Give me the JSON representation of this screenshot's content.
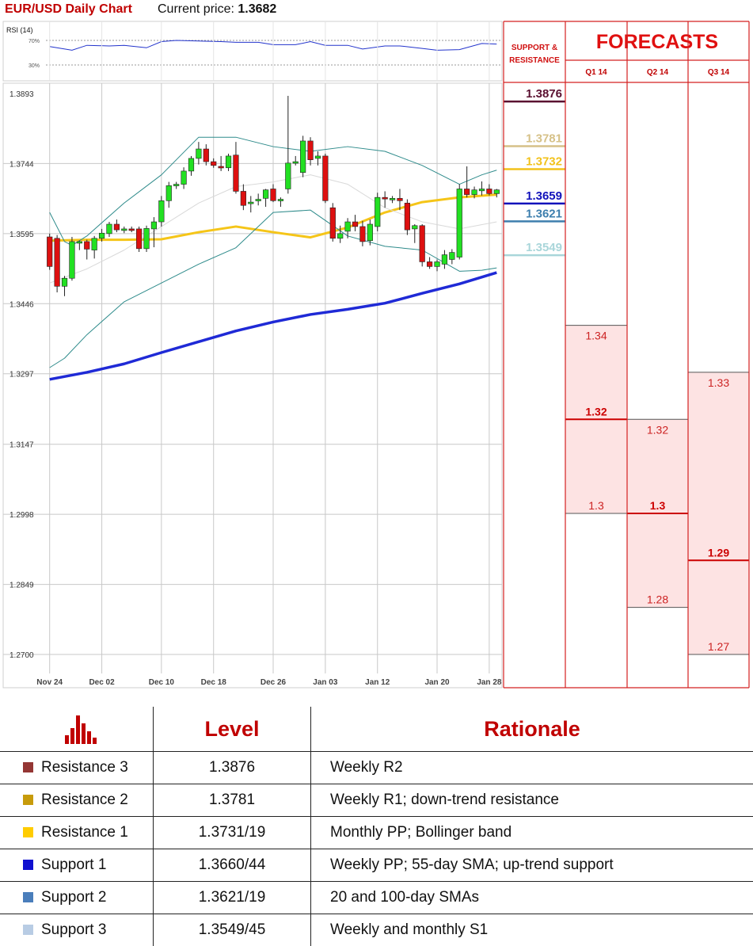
{
  "header": {
    "title": "EUR/USD Daily Chart",
    "price_label": "Current price:",
    "price_value": "1.3682"
  },
  "rsi_panel": {
    "label": "RSI (14)",
    "level_high": "70%",
    "level_low": "30%"
  },
  "chart_data": [
    {
      "type": "candlestick",
      "title": "EUR/USD Daily Chart",
      "ylim": [
        1.27,
        1.3893
      ],
      "y_ticks": [
        "1.3893",
        "1.3744",
        "1.3595",
        "1.3446",
        "1.3297",
        "1.3147",
        "1.2998",
        "1.2849",
        "1.2700"
      ],
      "x_ticks": [
        "Nov 24",
        "Dec 02",
        "Dec 10",
        "Dec 18",
        "Dec 26",
        "Jan 03",
        "Jan 12",
        "Jan 20",
        "Jan 28"
      ],
      "candles": [
        {
          "o": 1.3588,
          "h": 1.3595,
          "l": 1.3518,
          "c": 1.3525
        },
        {
          "o": 1.3585,
          "h": 1.3592,
          "l": 1.347,
          "c": 1.3483
        },
        {
          "o": 1.3483,
          "h": 1.3505,
          "l": 1.3462,
          "c": 1.35
        },
        {
          "o": 1.35,
          "h": 1.3588,
          "l": 1.3495,
          "c": 1.3578
        },
        {
          "o": 1.3575,
          "h": 1.358,
          "l": 1.356,
          "c": 1.3578
        },
        {
          "o": 1.3578,
          "h": 1.3582,
          "l": 1.354,
          "c": 1.3562
        },
        {
          "o": 1.356,
          "h": 1.359,
          "l": 1.3542,
          "c": 1.3585
        },
        {
          "o": 1.3585,
          "h": 1.3605,
          "l": 1.3578,
          "c": 1.3596
        },
        {
          "o": 1.3595,
          "h": 1.362,
          "l": 1.3588,
          "c": 1.3615
        },
        {
          "o": 1.3615,
          "h": 1.3625,
          "l": 1.3598,
          "c": 1.3603
        },
        {
          "o": 1.3603,
          "h": 1.361,
          "l": 1.3596,
          "c": 1.3605
        },
        {
          "o": 1.3605,
          "h": 1.361,
          "l": 1.3598,
          "c": 1.3603
        },
        {
          "o": 1.3605,
          "h": 1.361,
          "l": 1.3556,
          "c": 1.3563
        },
        {
          "o": 1.3563,
          "h": 1.3612,
          "l": 1.3556,
          "c": 1.3606
        },
        {
          "o": 1.3605,
          "h": 1.363,
          "l": 1.3566,
          "c": 1.362
        },
        {
          "o": 1.362,
          "h": 1.3675,
          "l": 1.361,
          "c": 1.3665
        },
        {
          "o": 1.3665,
          "h": 1.3705,
          "l": 1.365,
          "c": 1.3697
        },
        {
          "o": 1.3698,
          "h": 1.3705,
          "l": 1.369,
          "c": 1.37
        },
        {
          "o": 1.37,
          "h": 1.3736,
          "l": 1.369,
          "c": 1.3728
        },
        {
          "o": 1.3728,
          "h": 1.376,
          "l": 1.3718,
          "c": 1.3755
        },
        {
          "o": 1.3755,
          "h": 1.379,
          "l": 1.3742,
          "c": 1.3775
        },
        {
          "o": 1.3775,
          "h": 1.3785,
          "l": 1.374,
          "c": 1.3748
        },
        {
          "o": 1.3748,
          "h": 1.3755,
          "l": 1.3735,
          "c": 1.374
        },
        {
          "o": 1.3738,
          "h": 1.376,
          "l": 1.3728,
          "c": 1.3735
        },
        {
          "o": 1.3735,
          "h": 1.3765,
          "l": 1.3728,
          "c": 1.376
        },
        {
          "o": 1.3762,
          "h": 1.379,
          "l": 1.368,
          "c": 1.3685
        },
        {
          "o": 1.3685,
          "h": 1.37,
          "l": 1.3645,
          "c": 1.3655
        },
        {
          "o": 1.366,
          "h": 1.3675,
          "l": 1.364,
          "c": 1.3662
        },
        {
          "o": 1.3665,
          "h": 1.368,
          "l": 1.3655,
          "c": 1.3668
        },
        {
          "o": 1.367,
          "h": 1.369,
          "l": 1.3652,
          "c": 1.3688
        },
        {
          "o": 1.369,
          "h": 1.37,
          "l": 1.3662,
          "c": 1.3665
        },
        {
          "o": 1.3665,
          "h": 1.3672,
          "l": 1.3652,
          "c": 1.3668
        },
        {
          "o": 1.369,
          "h": 1.3888,
          "l": 1.368,
          "c": 1.3745
        },
        {
          "o": 1.3745,
          "h": 1.376,
          "l": 1.374,
          "c": 1.3748
        },
        {
          "o": 1.3725,
          "h": 1.3803,
          "l": 1.3715,
          "c": 1.3792
        },
        {
          "o": 1.3792,
          "h": 1.38,
          "l": 1.374,
          "c": 1.3752
        },
        {
          "o": 1.3755,
          "h": 1.377,
          "l": 1.374,
          "c": 1.376
        },
        {
          "o": 1.376,
          "h": 1.3765,
          "l": 1.366,
          "c": 1.3665
        },
        {
          "o": 1.365,
          "h": 1.366,
          "l": 1.3578,
          "c": 1.3585
        },
        {
          "o": 1.3585,
          "h": 1.3612,
          "l": 1.3575,
          "c": 1.3595
        },
        {
          "o": 1.36,
          "h": 1.3628,
          "l": 1.3585,
          "c": 1.362
        },
        {
          "o": 1.362,
          "h": 1.3635,
          "l": 1.36,
          "c": 1.361
        },
        {
          "o": 1.361,
          "h": 1.3622,
          "l": 1.3568,
          "c": 1.3578
        },
        {
          "o": 1.358,
          "h": 1.3625,
          "l": 1.357,
          "c": 1.3615
        },
        {
          "o": 1.361,
          "h": 1.3682,
          "l": 1.36,
          "c": 1.3672
        },
        {
          "o": 1.3672,
          "h": 1.3685,
          "l": 1.365,
          "c": 1.367
        },
        {
          "o": 1.3668,
          "h": 1.3675,
          "l": 1.366,
          "c": 1.367
        },
        {
          "o": 1.367,
          "h": 1.369,
          "l": 1.3645,
          "c": 1.3665
        },
        {
          "o": 1.366,
          "h": 1.3668,
          "l": 1.3592,
          "c": 1.3603
        },
        {
          "o": 1.3605,
          "h": 1.3615,
          "l": 1.3575,
          "c": 1.3612
        },
        {
          "o": 1.3612,
          "h": 1.3615,
          "l": 1.3525,
          "c": 1.3535
        },
        {
          "o": 1.3535,
          "h": 1.3545,
          "l": 1.352,
          "c": 1.3525
        },
        {
          "o": 1.3525,
          "h": 1.354,
          "l": 1.3515,
          "c": 1.3535
        },
        {
          "o": 1.353,
          "h": 1.356,
          "l": 1.352,
          "c": 1.355
        },
        {
          "o": 1.354,
          "h": 1.3562,
          "l": 1.353,
          "c": 1.3555
        },
        {
          "o": 1.3545,
          "h": 1.37,
          "l": 1.354,
          "c": 1.369
        },
        {
          "o": 1.369,
          "h": 1.3738,
          "l": 1.3672,
          "c": 1.3678
        },
        {
          "o": 1.3678,
          "h": 1.3695,
          "l": 1.367,
          "c": 1.3688
        },
        {
          "o": 1.3686,
          "h": 1.3706,
          "l": 1.3676,
          "c": 1.369
        },
        {
          "o": 1.369,
          "h": 1.37,
          "l": 1.3676,
          "c": 1.368
        },
        {
          "o": 1.368,
          "h": 1.369,
          "l": 1.3672,
          "c": 1.3688
        }
      ],
      "series": [
        {
          "type": "line",
          "color": "#f5c518",
          "x": [
            0,
            5,
            10,
            15,
            20,
            25,
            30,
            35,
            40,
            45,
            50,
            55,
            60
          ],
          "values": [
            1.358,
            1.3582,
            1.3582,
            1.3583,
            1.3598,
            1.361,
            1.3598,
            1.3587,
            1.3608,
            1.364,
            1.3662,
            1.3672,
            1.3678
          ]
        },
        {
          "type": "line",
          "color": "#1f2ad6",
          "x": [
            0,
            5,
            10,
            15,
            20,
            25,
            30,
            35,
            40,
            45,
            50,
            55,
            60
          ],
          "values": [
            1.3285,
            1.33,
            1.3318,
            1.3342,
            1.3365,
            1.3388,
            1.3407,
            1.3423,
            1.3434,
            1.3447,
            1.3468,
            1.3488,
            1.3512
          ]
        },
        {
          "type": "line",
          "color": "#2e8b8b",
          "x": [
            0,
            2,
            3,
            5,
            10,
            15,
            20,
            25,
            30,
            35,
            40,
            45,
            50,
            55,
            58,
            60
          ],
          "values": [
            1.364,
            1.3578,
            1.357,
            1.359,
            1.366,
            1.372,
            1.38,
            1.38,
            1.378,
            1.377,
            1.378,
            1.377,
            1.374,
            1.37,
            1.372,
            1.373
          ]
        },
        {
          "type": "line",
          "color": "#2e8b8b",
          "x": [
            0,
            2,
            5,
            10,
            15,
            20,
            25,
            30,
            35,
            40,
            45,
            50,
            55,
            58,
            60
          ],
          "values": [
            1.331,
            1.333,
            1.338,
            1.345,
            1.349,
            1.353,
            1.3565,
            1.364,
            1.3645,
            1.359,
            1.3568,
            1.356,
            1.3515,
            1.3517,
            1.3522
          ]
        },
        {
          "type": "line",
          "color": "#d9d9d9",
          "x": [
            0,
            5,
            10,
            15,
            20,
            25,
            30,
            35,
            40,
            45,
            50,
            55,
            60
          ],
          "values": [
            1.349,
            1.352,
            1.356,
            1.361,
            1.366,
            1.3695,
            1.3705,
            1.372,
            1.37,
            1.365,
            1.362,
            1.3605,
            1.362
          ]
        }
      ],
      "support_resistance": [
        {
          "value": "1.3876",
          "level": 1.3876,
          "color": "#5a1030"
        },
        {
          "value": "1.3781",
          "level": 1.3781,
          "color": "#d6c188"
        },
        {
          "value": "1.3732",
          "level": 1.3732,
          "color": "#f2c21b"
        },
        {
          "value": "1.3659",
          "level": 1.3659,
          "color": "#1212bb"
        },
        {
          "value": "1.3621",
          "level": 1.3621,
          "color": "#3e7fae"
        },
        {
          "value": "1.3549",
          "level": 1.3549,
          "color": "#a9d6da"
        }
      ]
    },
    {
      "type": "line",
      "title": "RSI (14)",
      "ylim": [
        0,
        100
      ],
      "x": [
        0,
        3,
        5,
        8,
        10,
        13,
        15,
        17,
        20,
        23,
        25,
        28,
        30,
        33,
        35,
        37,
        40,
        42,
        45,
        47,
        50,
        52,
        55,
        58,
        60
      ],
      "values": [
        60,
        54,
        62,
        61,
        62,
        58,
        68,
        70,
        69,
        68,
        67,
        67,
        63,
        63,
        68,
        62,
        62,
        56,
        61,
        61,
        57,
        54,
        55,
        65,
        64
      ]
    }
  ],
  "forecasts": {
    "title": "FORECASTS",
    "sr_header": "SUPPORT & RESISTANCE",
    "columns": [
      {
        "label": "Q1 14",
        "high": "1.34",
        "mid": "1.32",
        "low": "1.3",
        "high_v": 1.34,
        "mid_v": 1.32,
        "low_v": 1.3
      },
      {
        "label": "Q2 14",
        "high": "1.32",
        "mid": "1.3",
        "low": "1.28",
        "high_v": 1.32,
        "mid_v": 1.3,
        "low_v": 1.28
      },
      {
        "label": "Q3 14",
        "high": "1.33",
        "mid": "1.29",
        "low": "1.27",
        "high_v": 1.33,
        "mid_v": 1.29,
        "low_v": 1.27
      }
    ]
  },
  "levels_table": {
    "headers": {
      "level": "Level",
      "rationale": "Rationale"
    },
    "icon": "bar-chart-icon",
    "rows": [
      {
        "name": "Resistance 3",
        "level": "1.3876",
        "rationale": "Weekly R2",
        "color": "#943634"
      },
      {
        "name": "Resistance 2",
        "level": "1.3781",
        "rationale": "Weekly R1; down-trend resistance",
        "color": "#c79b0b"
      },
      {
        "name": "Resistance 1",
        "level": "1.3731/19",
        "rationale": "Monthly PP; Bollinger band",
        "color": "#ffcc00"
      },
      {
        "name": "Support 1",
        "level": "1.3660/44",
        "rationale": "Weekly PP; 55-day SMA; up-trend support",
        "color": "#1010d0"
      },
      {
        "name": "Support 2",
        "level": "1.3621/19",
        "rationale": "20 and 100-day SMAs",
        "color": "#4a7ebb"
      },
      {
        "name": "Support 3",
        "level": "1.3549/45",
        "rationale": "Weekly and monthly S1",
        "color": "#b8cce4"
      }
    ]
  }
}
